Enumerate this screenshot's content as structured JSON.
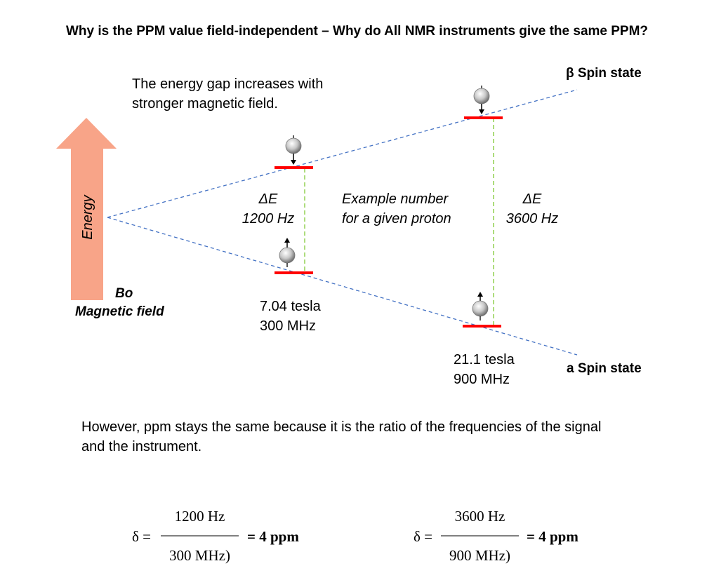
{
  "title": "Why is the PPM value field-independent – Why do All NMR instruments give the same PPM?",
  "energy_gap_note_line1": "The energy gap increases with",
  "energy_gap_note_line2": "stronger magnetic field.",
  "beta_label": "β Spin state",
  "alpha_label": "a Spin state",
  "energy_arrow_label": "Energy",
  "field_label_line1": "Bo",
  "field_label_line2": "Magnetic field",
  "instrument_low": {
    "delta_e": "ΔE",
    "freq": "1200 Hz",
    "tesla": "7.04 tesla",
    "mhz": "300 MHz"
  },
  "instrument_high": {
    "delta_e": "ΔE",
    "freq": "3600 Hz",
    "tesla": "21.1 tesla",
    "mhz": "900 MHz"
  },
  "example_line1": "Example number",
  "example_line2": "for a given proton",
  "conclusion_line1": "However, ppm stays the same because it is the ratio of the frequencies of the signal",
  "conclusion_line2": "and the instrument.",
  "formula_low": {
    "delta": "δ =",
    "numerator": "1200 Hz",
    "denominator": "300 MHz)",
    "result": "= 4 ppm"
  },
  "formula_high": {
    "delta": "δ =",
    "numerator": "3600 Hz",
    "denominator": "900 MHz)",
    "result": "= 4 ppm"
  },
  "colors": {
    "arrow": "#f8a488",
    "dashed_line": "#4472c4",
    "level": "#ff0000",
    "gap": "#92d050"
  },
  "icons": [
    "spin-down-ball-icon",
    "spin-up-ball-icon"
  ]
}
